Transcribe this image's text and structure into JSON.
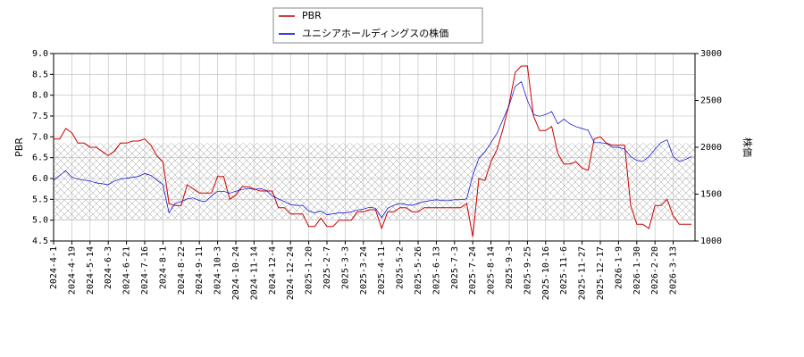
{
  "chart_data": {
    "type": "line",
    "ylabel": "PBR",
    "y2label": "株価",
    "categories": [
      "2024-4-1",
      null,
      null,
      "2024-4-19",
      null,
      null,
      "2024-5-14",
      null,
      null,
      "2024-6-3",
      null,
      null,
      "2024-6-21",
      null,
      null,
      "2024-7-16",
      null,
      null,
      "2024-8-1",
      null,
      null,
      "2024-8-22",
      null,
      null,
      "2024-9-11",
      null,
      null,
      "2024-10-3",
      null,
      null,
      "2024-10-24",
      null,
      null,
      "2024-11-14",
      null,
      null,
      "2024-12-4",
      null,
      null,
      "2024-12-24",
      null,
      null,
      "2025-1-20",
      null,
      null,
      "2025-2-7",
      null,
      null,
      "2025-3-3",
      null,
      null,
      "2025-3-24",
      null,
      null,
      "2025-4-11",
      null,
      null,
      "2025-5-2",
      null,
      null,
      "2025-5-26",
      null,
      null,
      "2025-6-13",
      null,
      null,
      "2025-7-3",
      null,
      null,
      "2025-7-24",
      null,
      null,
      "2025-8-14",
      null,
      null,
      "2025-9-3",
      null,
      null,
      "2025-9-25",
      null,
      null,
      "2025-10-16",
      null,
      null,
      "2025-11-6",
      null,
      null,
      "2025-11-27",
      null,
      null,
      "2025-12-17",
      null,
      null,
      "2026-1-9",
      null,
      null,
      "2026-1-30",
      null,
      null,
      "2026-2-20",
      null,
      null,
      "2026-3-13",
      null,
      null,
      null
    ],
    "series": [
      {
        "name": "PBR",
        "color": "#cc0000",
        "axis": "y",
        "values": [
          6.95,
          6.95,
          7.2,
          7.1,
          6.85,
          6.85,
          6.75,
          6.75,
          6.65,
          6.55,
          6.65,
          6.85,
          6.85,
          6.9,
          6.9,
          6.95,
          6.8,
          6.55,
          6.4,
          5.4,
          5.35,
          5.35,
          5.85,
          5.75,
          5.65,
          5.65,
          5.65,
          6.05,
          6.05,
          5.5,
          5.6,
          5.8,
          5.8,
          5.75,
          5.7,
          5.7,
          5.7,
          5.3,
          5.3,
          5.15,
          5.15,
          5.15,
          4.85,
          4.85,
          5.05,
          4.85,
          4.85,
          5.0,
          5.0,
          5.0,
          5.2,
          5.2,
          5.25,
          5.25,
          4.8,
          5.2,
          5.2,
          5.3,
          5.3,
          5.2,
          5.2,
          5.3,
          5.3,
          5.3,
          5.3,
          5.3,
          5.3,
          5.3,
          5.4,
          4.6,
          6.0,
          5.95,
          6.4,
          6.7,
          7.2,
          7.8,
          8.55,
          8.7,
          8.7,
          7.5,
          7.15,
          7.15,
          7.25,
          6.6,
          6.35,
          6.35,
          6.4,
          6.25,
          6.2,
          6.95,
          7.0,
          6.85,
          6.8,
          6.8,
          6.8,
          5.35,
          4.9,
          4.9,
          4.8,
          5.35,
          5.35,
          5.5,
          5.1,
          4.9,
          4.9,
          4.9
        ]
      },
      {
        "name": "ユニシアホールディングスの株価",
        "color": "#0000cc",
        "axis": "y2",
        "values": [
          1650,
          1700,
          1750,
          1680,
          1660,
          1650,
          1640,
          1620,
          1610,
          1600,
          1640,
          1660,
          1670,
          1680,
          1690,
          1720,
          1700,
          1650,
          1600,
          1300,
          1400,
          1420,
          1450,
          1460,
          1430,
          1420,
          1480,
          1530,
          1530,
          1510,
          1530,
          1550,
          1560,
          1550,
          1560,
          1540,
          1480,
          1450,
          1420,
          1390,
          1380,
          1380,
          1320,
          1300,
          1320,
          1280,
          1290,
          1300,
          1300,
          1310,
          1330,
          1340,
          1360,
          1350,
          1250,
          1350,
          1380,
          1400,
          1390,
          1380,
          1400,
          1420,
          1430,
          1440,
          1430,
          1430,
          1440,
          1440,
          1450,
          1700,
          1880,
          1950,
          2050,
          2150,
          2300,
          2450,
          2650,
          2700,
          2500,
          2350,
          2330,
          2350,
          2380,
          2250,
          2300,
          2250,
          2220,
          2200,
          2180,
          2050,
          2050,
          2040,
          2000,
          2000,
          1980,
          1900,
          1860,
          1850,
          1900,
          1980,
          2050,
          2080,
          1900,
          1850,
          1870,
          1900
        ]
      }
    ],
    "ylim": [
      4.5,
      9.0
    ],
    "yticks": [
      4.5,
      {
        "value": 5,
        "label": "5.0"
      },
      5.5,
      {
        "value": 6,
        "label": "6.0"
      },
      6.5,
      {
        "value": 7,
        "label": "7.0"
      },
      7.5,
      {
        "value": 8,
        "label": "8.0"
      },
      8.5,
      {
        "value": 9,
        "label": "9.0"
      }
    ],
    "y2lim": [
      1000,
      3000
    ],
    "y2ticks": [
      1000,
      1500,
      2000,
      2500,
      3000
    ],
    "hatch_ylim": [
      5.0,
      6.85
    ],
    "grid": true
  }
}
